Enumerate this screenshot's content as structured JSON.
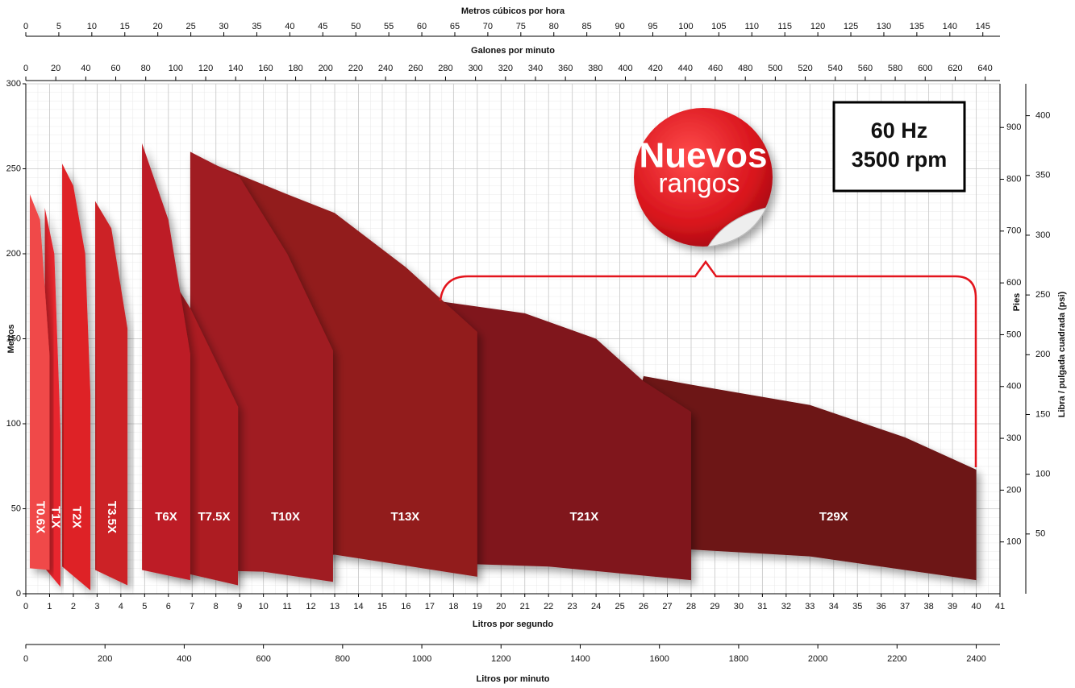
{
  "chart_data": {
    "type": "area",
    "grid": true,
    "x_label": "Litros por segundo",
    "xlim": [
      0,
      41
    ],
    "xticks": [
      0,
      1,
      2,
      3,
      4,
      5,
      6,
      7,
      8,
      9,
      10,
      11,
      12,
      13,
      14,
      15,
      16,
      17,
      18,
      19,
      20,
      21,
      22,
      23,
      24,
      25,
      26,
      27,
      28,
      29,
      30,
      31,
      32,
      33,
      34,
      35,
      36,
      37,
      38,
      39,
      40,
      41
    ],
    "y_label": "Metros",
    "ylim": [
      0,
      300
    ],
    "yticks": [
      0,
      50,
      100,
      150,
      200,
      250,
      300
    ],
    "top_axes": [
      {
        "label": "Metros cúbicos por hora",
        "xlim": [
          0,
          147.6
        ],
        "xticks": [
          0,
          5,
          10,
          15,
          20,
          25,
          30,
          35,
          40,
          45,
          50,
          55,
          60,
          65,
          70,
          75,
          80,
          85,
          90,
          95,
          100,
          105,
          110,
          115,
          120,
          125,
          130,
          135,
          140,
          145
        ]
      },
      {
        "label": "Galones por minuto",
        "xlim": [
          0,
          649.9
        ],
        "xticks": [
          0,
          20,
          40,
          60,
          80,
          100,
          120,
          140,
          160,
          180,
          200,
          220,
          240,
          260,
          280,
          300,
          320,
          340,
          360,
          380,
          400,
          420,
          440,
          460,
          480,
          500,
          520,
          540,
          560,
          580,
          600,
          620,
          640
        ]
      }
    ],
    "bottom_axis2": {
      "label": "Litros por minuto",
      "xlim": [
        0,
        2460
      ],
      "xticks": [
        0,
        200,
        400,
        600,
        800,
        1000,
        1200,
        1400,
        1600,
        1800,
        2000,
        2200,
        2400
      ]
    },
    "right_axes": [
      {
        "label": "Pies",
        "ylim": [
          0,
          984.3
        ],
        "yticks": [
          100,
          200,
          300,
          400,
          500,
          600,
          700,
          800,
          900
        ]
      },
      {
        "label": "Libra / pulgada cuadrada (psi)",
        "ylim": [
          0,
          426.7
        ],
        "yticks": [
          50,
          100,
          150,
          200,
          250,
          300,
          350,
          400
        ]
      }
    ],
    "series": [
      {
        "name": "T0.6X",
        "color": "#f04a4a",
        "x": [
          0.17,
          0.6,
          1.0
        ],
        "values": [
          235,
          220,
          140
        ],
        "lower_x": [
          0.17,
          1.0
        ],
        "lower_values": [
          15,
          14
        ]
      },
      {
        "name": "T1X",
        "color": "#e8252d",
        "x": [
          0.8,
          1.2,
          1.46
        ],
        "values": [
          227,
          200,
          95
        ],
        "lower_x": [
          0.8,
          1.46
        ],
        "lower_values": [
          15,
          4
        ]
      },
      {
        "name": "T2X",
        "color": "#de2027",
        "x": [
          1.53,
          2.0,
          2.5,
          2.72
        ],
        "values": [
          253,
          240,
          200,
          117
        ],
        "lower_x": [
          1.53,
          2.72
        ],
        "lower_values": [
          16,
          2
        ]
      },
      {
        "name": "T3.5X",
        "color": "#cc2128",
        "x": [
          2.92,
          3.6,
          4.28
        ],
        "values": [
          231,
          215,
          156
        ],
        "lower_x": [
          2.92,
          4.28
        ],
        "lower_values": [
          14,
          5
        ]
      },
      {
        "name": "T6X",
        "color": "#bd1f26",
        "x": [
          4.89,
          6.0,
          6.92
        ],
        "values": [
          265,
          220,
          141
        ],
        "lower_x": [
          4.89,
          6.92
        ],
        "lower_values": [
          14,
          8
        ]
      },
      {
        "name": "T7.5X",
        "color": "#ad1e24",
        "x": [
          5.5,
          6.92,
          8.93
        ],
        "values": [
          200,
          168,
          110
        ],
        "lower_x": [
          5.5,
          8.93
        ],
        "lower_values": [
          16,
          5
        ]
      },
      {
        "name": "T10X",
        "color": "#a01c22",
        "x": [
          6.92,
          9.0,
          11.0,
          12.93
        ],
        "values": [
          260,
          245,
          200,
          143
        ],
        "lower_x": [
          6.92,
          10.0,
          12.93
        ],
        "lower_values": [
          14,
          13,
          7
        ]
      },
      {
        "name": "T13X",
        "color": "#921a1f",
        "x": [
          7.5,
          11.0,
          13.0,
          16.0,
          19.0
        ],
        "values": [
          255,
          235,
          224,
          192,
          154
        ],
        "lower_x": [
          9.0,
          13.0,
          19.0
        ],
        "lower_values": [
          18,
          23,
          10
        ]
      },
      {
        "name": "T21X",
        "color": "#80161b",
        "x": [
          17.45,
          21.0,
          24.0,
          26.0,
          28.0
        ],
        "values": [
          172,
          165,
          150,
          125,
          107
        ],
        "lower_x": [
          17.45,
          22.0,
          28.0
        ],
        "lower_values": [
          18,
          16,
          8
        ]
      },
      {
        "name": "T29X",
        "color": "#6d1214",
        "x": [
          26.0,
          28.0,
          33.0,
          37.0,
          40.0
        ],
        "values": [
          128,
          123,
          111,
          92,
          73
        ],
        "lower_x": [
          24.0,
          28.0,
          33.0,
          40.0
        ],
        "lower_values": [
          26,
          26,
          22,
          8
        ]
      }
    ],
    "annotations": {
      "frequency": "60 Hz",
      "speed": "3500 rpm",
      "badge_line1": "Nuevos",
      "badge_line2": "rangos"
    }
  }
}
